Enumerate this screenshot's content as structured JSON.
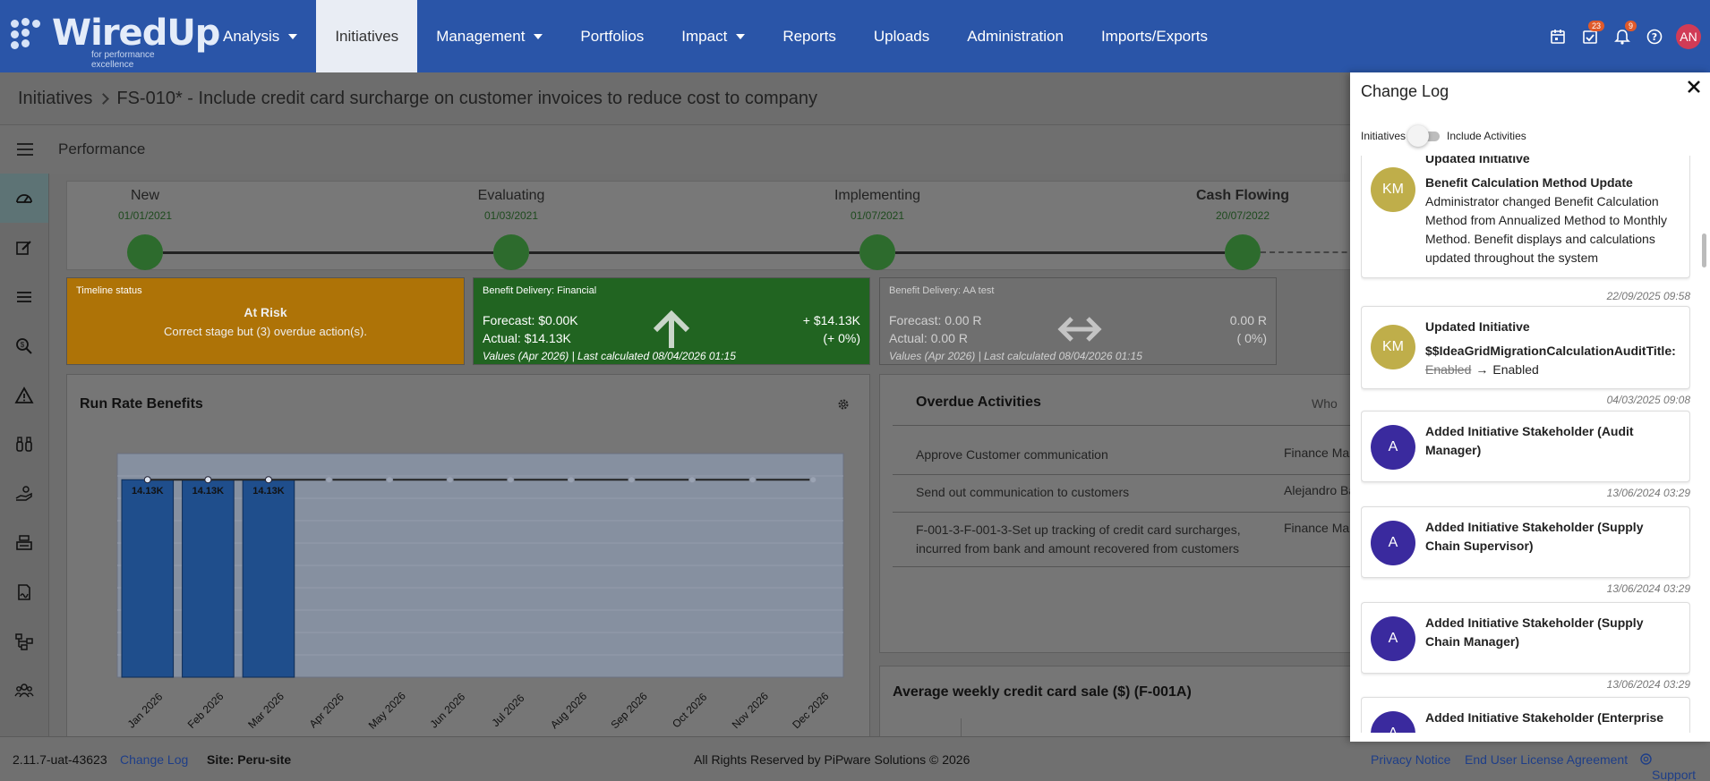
{
  "logo": {
    "name": "WiredUp",
    "tagline": "for performance excellence"
  },
  "nav": {
    "items": [
      {
        "label": "Analysis",
        "dropdown": true,
        "active": false
      },
      {
        "label": "Initiatives",
        "dropdown": false,
        "active": true
      },
      {
        "label": "Management",
        "dropdown": true,
        "active": false
      },
      {
        "label": "Portfolios",
        "dropdown": false,
        "active": false
      },
      {
        "label": "Impact",
        "dropdown": true,
        "active": false
      },
      {
        "label": "Reports",
        "dropdown": false,
        "active": false
      },
      {
        "label": "Uploads",
        "dropdown": false,
        "active": false
      },
      {
        "label": "Administration",
        "dropdown": false,
        "active": false
      },
      {
        "label": "Imports/Exports",
        "dropdown": false,
        "active": false
      }
    ],
    "icons": {
      "calendar": "calendar-icon",
      "tasks": "tasks-icon",
      "tasks_badge": "23",
      "bell": "bell-icon",
      "bell_badge": "9",
      "help": "help-icon"
    },
    "user_initials": "AN"
  },
  "breadcrumb": {
    "root": "Initiatives",
    "current": "FS-010* - Include credit card surcharge on customer invoices to reduce cost to company"
  },
  "section": {
    "title": "Performance"
  },
  "sidebar": {
    "icons": [
      "dashboard-icon",
      "edit-icon",
      "list-icon",
      "search-dollar-icon",
      "warning-icon",
      "binoculars-icon",
      "hand-coin-icon",
      "cash-register-icon",
      "signed-document-icon",
      "hierarchy-icon",
      "users-icon"
    ]
  },
  "stages": [
    {
      "name": "New",
      "date": "01/01/2021",
      "current": false
    },
    {
      "name": "Evaluating",
      "date": "01/03/2021",
      "current": false
    },
    {
      "name": "Implementing",
      "date": "01/07/2021",
      "current": false
    },
    {
      "name": "Cash Flowing",
      "date": "20/07/2022",
      "current": true
    }
  ],
  "cards": {
    "timeline": {
      "title": "Timeline status",
      "status": "At Risk",
      "message": "Correct stage but (3) overdue action(s).",
      "color": "#ae7307"
    },
    "financial": {
      "title": "Benefit Delivery: Financial",
      "forecast": "Forecast: $0.00K",
      "actual": "Actual: $14.13K",
      "delta": "+ $14.13K",
      "delta_pct": "(+ 0%)",
      "footer": "Values (Apr 2026) | Last calculated 08/04/2026 01:15",
      "color": "#216421"
    },
    "aa": {
      "title": "Benefit Delivery: AA test",
      "forecast": "Forecast: 0.00 R",
      "actual": "Actual: 0.00 R",
      "delta": "0.00 R",
      "delta_pct": "( 0%)",
      "footer": "Values (Apr 2026) | Last calculated 08/04/2026 01:15",
      "color": "#6f6f6f"
    }
  },
  "run_rate": {
    "title": "Run Rate Benefits"
  },
  "chart_data": {
    "type": "bar",
    "categories": [
      "Jan 2026",
      "Feb 2026",
      "Mar 2026",
      "Apr 2026",
      "May 2026",
      "Jun 2026",
      "Jul 2026",
      "Aug 2026",
      "Sep 2026",
      "Oct 2026",
      "Nov 2026",
      "Dec 2026"
    ],
    "series": [
      {
        "values": [
          14.13,
          14.13,
          14.13,
          null,
          null,
          null,
          null,
          null,
          null,
          null,
          null,
          null
        ],
        "labels": [
          "14.13K",
          "14.13K",
          "14.13K",
          "",
          "",
          "",
          "",
          "",
          "",
          "",
          "",
          ""
        ]
      },
      {
        "type": "line",
        "values": [
          14.13,
          14.13,
          14.13,
          14.13,
          14.13,
          14.13,
          14.13,
          14.13,
          14.13,
          14.13,
          14.13,
          14.13
        ]
      }
    ],
    "ylim": [
      0,
      16
    ],
    "grid": true,
    "bar_color": "#1f4e8c"
  },
  "overdue": {
    "title": "Overdue Activities",
    "who_header": "Who",
    "rows": [
      {
        "activity": "Approve Customer communication",
        "who": "Finance Ma"
      },
      {
        "activity": "Send out communication to customers",
        "who": "Alejandro Ba"
      },
      {
        "activity": "F-001-3-F-001-3-Set up tracking of credit card surcharges,",
        "activity2": "incurred from bank and amount recovered from customers",
        "who": "Finance Ma"
      }
    ]
  },
  "avg_weekly": {
    "title": "Average weekly credit card sale ($) (F-001A)"
  },
  "footer": {
    "version": "2.11.7-uat-43623",
    "change_log": "Change Log",
    "site": "Site: Peru-site",
    "rights": "All Rights Reserved by PiPware Solutions © 2026",
    "privacy": "Privacy Notice",
    "eula": "End User License Agreement",
    "support": "Support"
  },
  "change_log": {
    "title": "Change Log",
    "toggle_left": "Initiatives",
    "toggle_right": "Include Activities",
    "entries": [
      {
        "initials": "KM",
        "color": "#bfae4a",
        "title": "Updated Initiative",
        "subtitle": "Benefit Calculation Method Update",
        "text": "Administrator changed Benefit Calculation Method from Annualized Method to Monthly Method. Benefit displays and calculations updated throughout the system",
        "timestamp": "22/09/2025 09:58"
      },
      {
        "initials": "KM",
        "color": "#bfae4a",
        "title": "Updated Initiative",
        "subtitle": "$$IdeaGridMigrationCalculationAuditTitle:",
        "old": "Enabled",
        "arrow": "→",
        "new": "Enabled",
        "timestamp": "04/03/2025 09:08"
      },
      {
        "initials": "A",
        "color": "#3a2a9e",
        "title": "Added Initiative Stakeholder (Audit Manager)",
        "timestamp": "13/06/2024 03:29"
      },
      {
        "initials": "A",
        "color": "#3a2a9e",
        "title": "Added Initiative Stakeholder (Supply Chain Supervisor)",
        "timestamp": "13/06/2024 03:29"
      },
      {
        "initials": "A",
        "color": "#3a2a9e",
        "title": "Added Initiative Stakeholder (Supply Chain Manager)",
        "timestamp": "13/06/2024 03:29"
      },
      {
        "initials": "A",
        "color": "#3a2a9e",
        "title": "Added Initiative Stakeholder (Enterprise"
      }
    ]
  }
}
